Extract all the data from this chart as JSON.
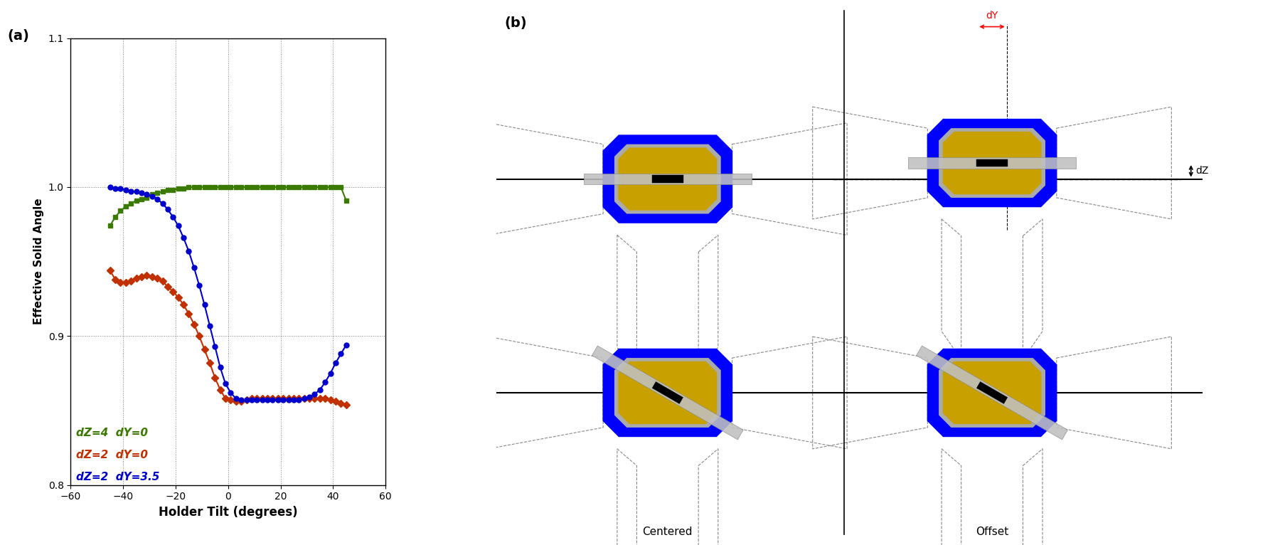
{
  "xlabel": "Holder Tilt (degrees)",
  "ylabel": "Effective Solid Angle",
  "xlim": [
    -60,
    60
  ],
  "ylim": [
    0.8,
    1.1
  ],
  "xticks": [
    -60,
    -40,
    -20,
    0,
    20,
    40,
    60
  ],
  "yticks": [
    0.8,
    0.9,
    1.0,
    1.1
  ],
  "ytick_labels": [
    "0.8",
    "0.9",
    "1.0",
    "1.1"
  ],
  "green_x": [
    -45,
    -43,
    -41,
    -39,
    -37,
    -35,
    -33,
    -31,
    -29,
    -27,
    -25,
    -23,
    -21,
    -19,
    -17,
    -15,
    -13,
    -11,
    -9,
    -7,
    -5,
    -3,
    -1,
    1,
    3,
    5,
    7,
    9,
    11,
    13,
    15,
    17,
    19,
    21,
    23,
    25,
    27,
    29,
    31,
    33,
    35,
    37,
    39,
    41,
    43,
    45
  ],
  "green_y": [
    0.974,
    0.98,
    0.984,
    0.987,
    0.989,
    0.991,
    0.992,
    0.993,
    0.995,
    0.996,
    0.997,
    0.998,
    0.998,
    0.999,
    0.999,
    1.0,
    1.0,
    1.0,
    1.0,
    1.0,
    1.0,
    1.0,
    1.0,
    1.0,
    1.0,
    1.0,
    1.0,
    1.0,
    1.0,
    1.0,
    1.0,
    1.0,
    1.0,
    1.0,
    1.0,
    1.0,
    1.0,
    1.0,
    1.0,
    1.0,
    1.0,
    1.0,
    1.0,
    1.0,
    1.0,
    0.991
  ],
  "red_x": [
    -45,
    -43,
    -41,
    -39,
    -37,
    -35,
    -33,
    -31,
    -29,
    -27,
    -25,
    -23,
    -21,
    -19,
    -17,
    -15,
    -13,
    -11,
    -9,
    -7,
    -5,
    -3,
    -1,
    1,
    3,
    5,
    7,
    9,
    11,
    13,
    15,
    17,
    19,
    21,
    23,
    25,
    27,
    29,
    31,
    33,
    35,
    37,
    39,
    41,
    43,
    45
  ],
  "red_y": [
    0.944,
    0.938,
    0.936,
    0.936,
    0.937,
    0.939,
    0.94,
    0.941,
    0.94,
    0.939,
    0.937,
    0.933,
    0.93,
    0.926,
    0.921,
    0.915,
    0.908,
    0.9,
    0.891,
    0.882,
    0.872,
    0.864,
    0.858,
    0.857,
    0.856,
    0.856,
    0.857,
    0.858,
    0.858,
    0.858,
    0.858,
    0.858,
    0.858,
    0.858,
    0.858,
    0.858,
    0.858,
    0.858,
    0.858,
    0.858,
    0.858,
    0.858,
    0.857,
    0.856,
    0.855,
    0.854
  ],
  "blue_x": [
    -45,
    -43,
    -41,
    -39,
    -37,
    -35,
    -33,
    -31,
    -29,
    -27,
    -25,
    -23,
    -21,
    -19,
    -17,
    -15,
    -13,
    -11,
    -9,
    -7,
    -5,
    -3,
    -1,
    1,
    3,
    5,
    7,
    9,
    11,
    13,
    15,
    17,
    19,
    21,
    23,
    25,
    27,
    29,
    31,
    33,
    35,
    37,
    39,
    41,
    43,
    45
  ],
  "blue_y": [
    1.0,
    0.999,
    0.999,
    0.998,
    0.997,
    0.997,
    0.996,
    0.995,
    0.994,
    0.992,
    0.989,
    0.985,
    0.98,
    0.974,
    0.966,
    0.957,
    0.946,
    0.934,
    0.921,
    0.907,
    0.893,
    0.879,
    0.868,
    0.862,
    0.858,
    0.857,
    0.857,
    0.857,
    0.857,
    0.857,
    0.857,
    0.857,
    0.857,
    0.857,
    0.857,
    0.857,
    0.857,
    0.858,
    0.859,
    0.861,
    0.864,
    0.869,
    0.875,
    0.882,
    0.888,
    0.894
  ],
  "green_color": "#3a7a00",
  "red_color": "#c03000",
  "blue_color": "#0000cc",
  "legend_green": "dZ=4  dY=0",
  "legend_red": "dZ=2  dY=0",
  "legend_blue": "dZ=2  dY=3.5"
}
